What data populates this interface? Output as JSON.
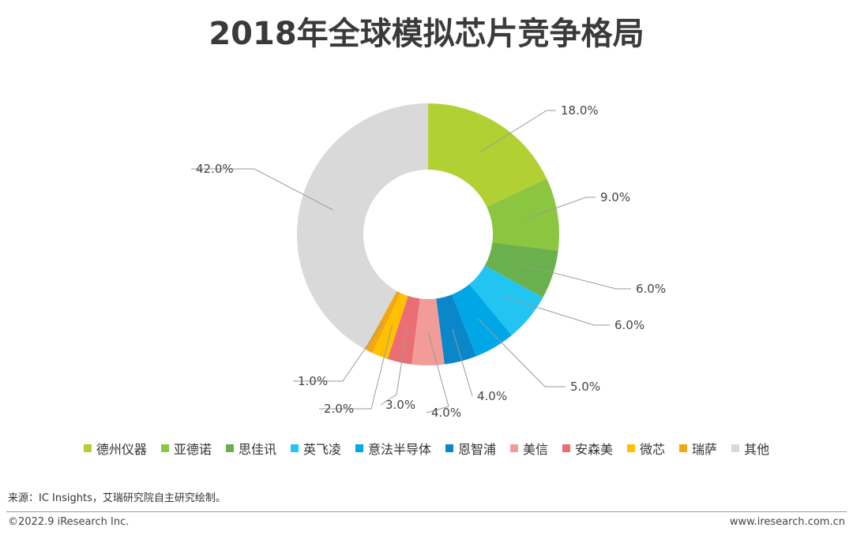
{
  "title": "2018年全球模拟芯片竞争格局",
  "chart_data": {
    "type": "pie",
    "donut": true,
    "categories": [
      "德州仪器",
      "亚德诺",
      "思佳讯",
      "英飞凌",
      "意法半导体",
      "恩智浦",
      "美信",
      "安森美",
      "微芯",
      "瑞萨",
      "其他"
    ],
    "values": [
      18.0,
      9.0,
      6.0,
      6.0,
      5.0,
      4.0,
      4.0,
      3.0,
      2.0,
      1.0,
      42.0
    ],
    "labels": [
      "18.0%",
      "9.0%",
      "6.0%",
      "6.0%",
      "5.0%",
      "4.0%",
      "4.0%",
      "3.0%",
      "2.0%",
      "1.0%",
      "42.0%"
    ],
    "colors": [
      "#b1d034",
      "#8cc641",
      "#6ab04c",
      "#22c4f2",
      "#00a6e6",
      "#0a87c9",
      "#f19c98",
      "#ea6f74",
      "#ffc000",
      "#f3a712",
      "#d9d9d9"
    ],
    "legend": "bottom"
  },
  "footer": {
    "source": "来源：IC Insights，艾瑞研究院自主研究绘制。",
    "copyright": "©2022.9 iResearch Inc.",
    "website": "www.iresearch.com.cn"
  }
}
